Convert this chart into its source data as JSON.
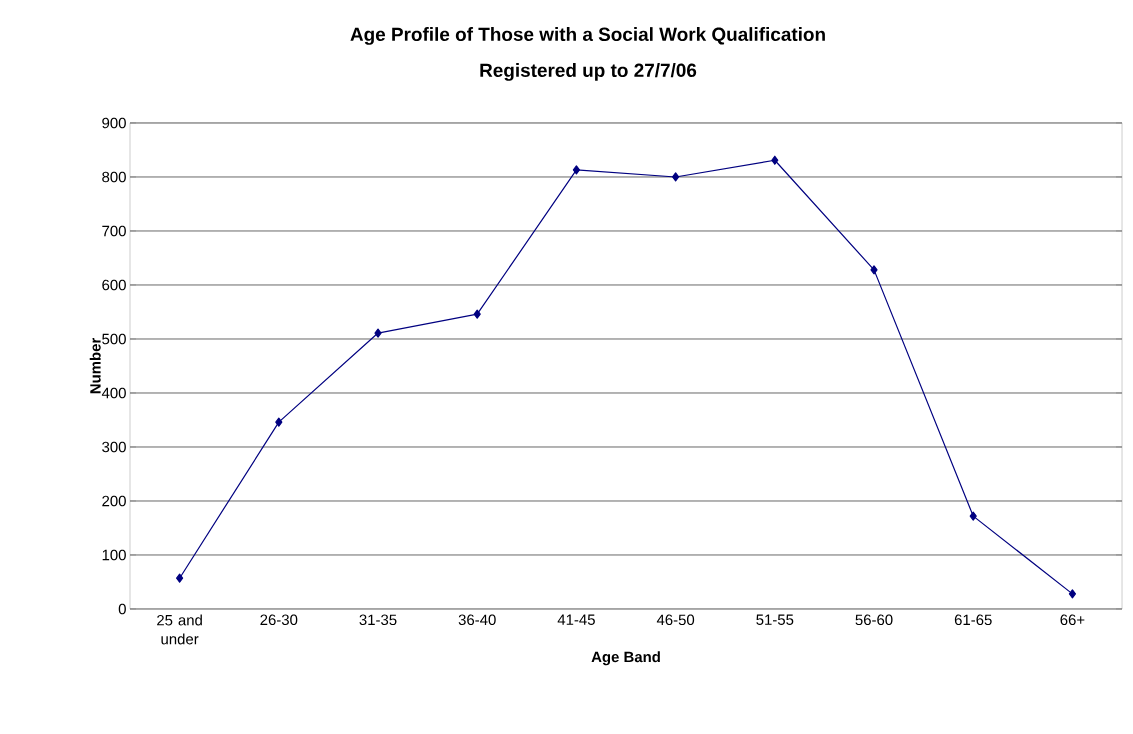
{
  "chart_data": {
    "type": "line",
    "title": "Age Profile of Those with a Social Work Qualification",
    "subtitle": "Registered up to 27/7/06",
    "xlabel": "Age Band",
    "ylabel": "Number",
    "categories": [
      "25 and under",
      "26-30",
      "31-35",
      "36-40",
      "41-45",
      "46-50",
      "51-55",
      "56-60",
      "61-65",
      "66+"
    ],
    "series": [
      {
        "color": "#000080",
        "values": [
          57,
          346,
          511,
          546,
          813,
          800,
          831,
          628,
          172,
          28
        ]
      }
    ],
    "ylim": [
      0,
      900
    ],
    "yticks": [
      0,
      100,
      200,
      300,
      400,
      500,
      600,
      700,
      800,
      900
    ],
    "grid": "y",
    "marker": "diamond",
    "line_style": "solid"
  }
}
